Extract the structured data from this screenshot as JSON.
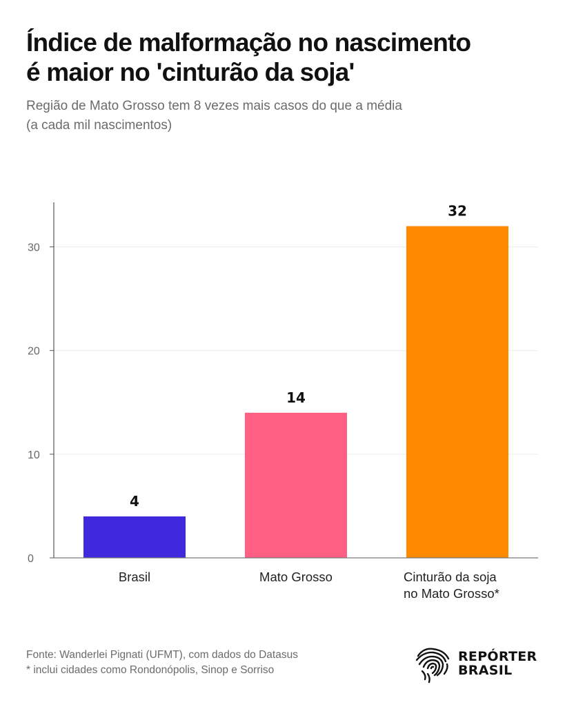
{
  "header": {
    "title_line1": "Índice de malformação no nascimento",
    "title_line2": "é maior no 'cinturão da soja'",
    "subtitle_line1": "Região de Mato Grosso tem 8 vezes mais casos do que a média",
    "subtitle_line2": "(a cada mil nascimentos)"
  },
  "chart_data": {
    "type": "bar",
    "title": "Índice de malformação no nascimento é maior no 'cinturão da soja'",
    "subtitle": "Região de Mato Grosso tem 8 vezes mais casos do que a média (a cada mil nascimentos)",
    "xlabel": "",
    "ylabel": "",
    "categories": [
      [
        "Brasil"
      ],
      [
        "Mato Grosso"
      ],
      [
        "Cinturão da soja",
        "no Mato Grosso*"
      ]
    ],
    "values": [
      4,
      14,
      32
    ],
    "data_labels": [
      "4",
      "14",
      "32"
    ],
    "colors": [
      "#3f28dd",
      "#ff5f83",
      "#ff8a00"
    ],
    "yticks": [
      0,
      10,
      20,
      30
    ],
    "ylim": [
      0,
      34.3
    ],
    "grid": true,
    "legend": "none"
  },
  "footer": {
    "source": "Fonte: Wanderlei Pignati (UFMT), com dados do Datasus",
    "note": "* inclui cidades como Rondonópolis, Sinop e Sorriso"
  },
  "logo": {
    "line1": "REPÓRTER",
    "line2": "BRASIL",
    "icon": "fingerprint-brazil-map-icon"
  }
}
